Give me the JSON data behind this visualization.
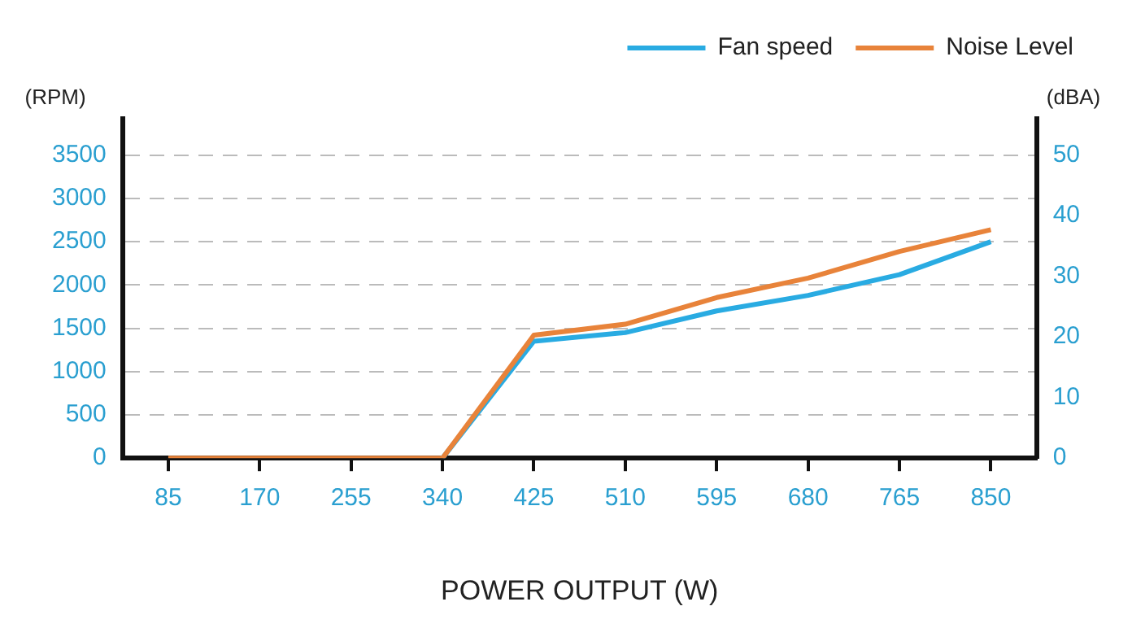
{
  "chart_data": {
    "type": "line",
    "xlabel": "POWER OUTPUT (W)",
    "ylabel": "(RPM)",
    "y2label": "(dBA)",
    "categories": [
      "85",
      "170",
      "255",
      "340",
      "425",
      "510",
      "595",
      "680",
      "765",
      "850"
    ],
    "series": [
      {
        "name": "Fan speed",
        "color": "#29abe2",
        "values": [
          null,
          null,
          null,
          0,
          1350,
          1450,
          1700,
          1880,
          2120,
          2500
        ]
      },
      {
        "name": "Noise Level",
        "color": "#e8833a",
        "axis": "y2",
        "values": [
          0,
          0,
          0,
          0,
          20.3,
          22.1,
          26.5,
          29.7,
          34.1,
          37.7
        ]
      }
    ],
    "ylim": [
      0,
      3920
    ],
    "yticks": [
      0,
      500,
      1000,
      1500,
      2000,
      2500,
      3000,
      3500
    ],
    "y2lim": [
      0,
      56
    ],
    "y2ticks": [
      0,
      10,
      20,
      30,
      40,
      50
    ],
    "grid": "y",
    "legend": "top right",
    "marker": "none",
    "line_style": "solid"
  }
}
